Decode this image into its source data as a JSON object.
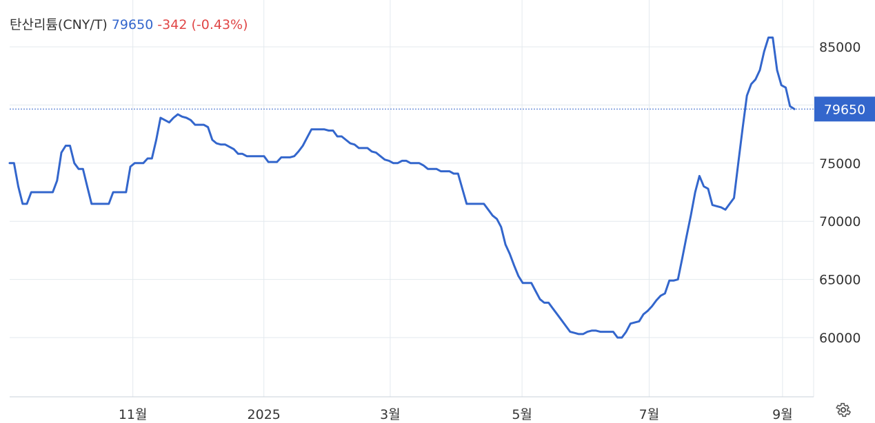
{
  "header": {
    "title": "탄산리튬(CNY/T)",
    "price": "79650",
    "change": "-342 (-0.43%)"
  },
  "price_tag": "79650",
  "colors": {
    "line": "#3366cc",
    "change_negative": "#e04646",
    "grid": "#e3e9ee",
    "tag_bg": "#3366cc"
  },
  "settings_icon": "gear-icon",
  "chart_data": {
    "type": "line",
    "ylim": [
      55000,
      90000
    ],
    "y_ticks": [
      60000,
      65000,
      70000,
      75000,
      80000,
      85000
    ],
    "y_tick_labels": [
      "60000",
      "65000",
      "70000",
      "75000",
      "",
      "85000"
    ],
    "x_ticks": [
      {
        "label": "11월",
        "t": 0.157
      },
      {
        "label": "2025",
        "t": 0.324
      },
      {
        "label": "3월",
        "t": 0.485
      },
      {
        "label": "5월",
        "t": 0.653
      },
      {
        "label": "7월",
        "t": 0.815
      },
      {
        "label": "9월",
        "t": 0.985
      }
    ],
    "grid": true,
    "series": [
      {
        "values": [
          75000,
          75000,
          73000,
          71500,
          71500,
          72500,
          72500,
          72500,
          72500,
          72500,
          72500,
          73500,
          75900,
          76500,
          76500,
          75000,
          74500,
          74500,
          73000,
          71500,
          71500,
          71500,
          71500,
          71500,
          72500,
          72500,
          72500,
          72500,
          74700,
          75000,
          75000,
          75000,
          75400,
          75400,
          77000,
          78900,
          78700,
          78500,
          78900,
          79200,
          79000,
          78900,
          78700,
          78300,
          78300,
          78300,
          78100,
          77000,
          76700,
          76600,
          76600,
          76400,
          76200,
          75800,
          75800,
          75600,
          75600,
          75600,
          75600,
          75600,
          75100,
          75100,
          75100,
          75500,
          75500,
          75500,
          75600,
          76000,
          76500,
          77200,
          77900,
          77900,
          77900,
          77900,
          77800,
          77800,
          77300,
          77300,
          77000,
          76700,
          76600,
          76300,
          76300,
          76300,
          76000,
          75900,
          75600,
          75300,
          75200,
          75000,
          75000,
          75200,
          75200,
          75000,
          75000,
          75000,
          74800,
          74500,
          74500,
          74500,
          74300,
          74300,
          74300,
          74100,
          74100,
          72800,
          71500,
          71500,
          71500,
          71500,
          71500,
          71000,
          70500,
          70200,
          69500,
          68000,
          67200,
          66200,
          65300,
          64700,
          64700,
          64700,
          64000,
          63300,
          63000,
          63000,
          62500,
          62000,
          61500,
          61000,
          60500,
          60400,
          60300,
          60300,
          60500,
          60600,
          60600,
          60500,
          60500,
          60500,
          60500,
          60000,
          60000,
          60500,
          61200,
          61300,
          61400,
          62000,
          62300,
          62700,
          63200,
          63600,
          63800,
          64900,
          64900,
          65000,
          66800,
          68700,
          70500,
          72500,
          73900,
          73000,
          72800,
          71400,
          71300,
          71200,
          71000,
          71500,
          72000,
          75000,
          78000,
          80800,
          81800,
          82200,
          83000,
          84600,
          85800,
          85800,
          83000,
          81700,
          81500,
          79900,
          79650
        ]
      }
    ]
  }
}
